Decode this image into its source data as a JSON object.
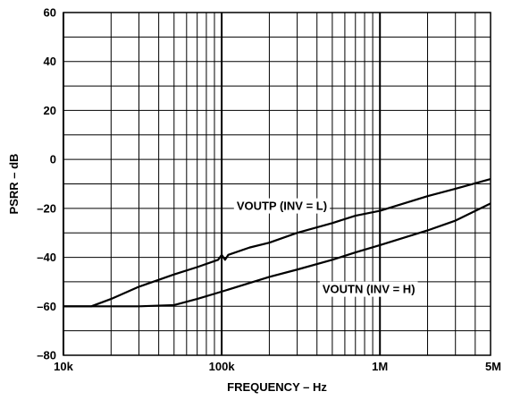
{
  "chart_data": {
    "type": "line",
    "title": "",
    "xlabel": "FREQUENCY – Hz",
    "ylabel": "PSRR – dB",
    "x_scale": "log",
    "xlim": [
      10000,
      5000000
    ],
    "ylim": [
      -80,
      60
    ],
    "grid": true,
    "x_tick_labels": [
      {
        "value": 10000,
        "label": "10k"
      },
      {
        "value": 100000,
        "label": "100k"
      },
      {
        "value": 1000000,
        "label": "1M"
      },
      {
        "value": 5000000,
        "label": "5M"
      }
    ],
    "y_tick_labels": [
      {
        "value": 60,
        "label": "60"
      },
      {
        "value": 40,
        "label": "40"
      },
      {
        "value": 20,
        "label": "20"
      },
      {
        "value": 0,
        "label": "0"
      },
      {
        "value": -20,
        "label": "–20"
      },
      {
        "value": -40,
        "label": "–40"
      },
      {
        "value": -60,
        "label": "–60"
      },
      {
        "value": -80,
        "label": "–80"
      }
    ],
    "series": [
      {
        "name": "VOUTP (INV = L)",
        "x": [
          10000,
          15000,
          20000,
          30000,
          50000,
          70000,
          95000,
          100000,
          105000,
          110000,
          150000,
          200000,
          300000,
          500000,
          700000,
          1000000,
          2000000,
          3000000,
          5000000
        ],
        "y": [
          -60,
          -60,
          -57,
          -52,
          -47,
          -44,
          -41,
          -39,
          -41,
          -39,
          -36,
          -34,
          -30,
          -26,
          -23,
          -21,
          -15,
          -12,
          -8
        ]
      },
      {
        "name": "VOUTN (INV = H)",
        "x": [
          10000,
          20000,
          30000,
          50000,
          70000,
          100000,
          200000,
          300000,
          500000,
          700000,
          1000000,
          2000000,
          3000000,
          5000000
        ],
        "y": [
          -60,
          -60,
          -60,
          -59.5,
          -57,
          -54,
          -48,
          -45,
          -41,
          -38,
          -35,
          -29,
          -25,
          -18
        ]
      }
    ]
  }
}
